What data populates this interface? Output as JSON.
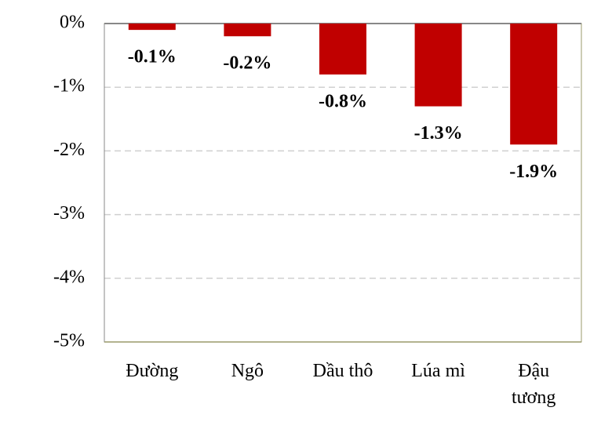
{
  "chart_data": {
    "type": "bar",
    "categories": [
      "Đường",
      "Ngô",
      "Dầu thô",
      "Lúa mì",
      "Đậu tương"
    ],
    "values": [
      -0.1,
      -0.2,
      -0.8,
      -1.3,
      -1.9
    ],
    "value_labels": [
      "-0.1%",
      "-0.2%",
      "-0.8%",
      "-1.3%",
      "-1.9%"
    ],
    "color": "#c00000",
    "ylim": [
      -5,
      0
    ],
    "yticks": [
      {
        "value": 0,
        "label": "0%"
      },
      {
        "value": -1,
        "label": "-1%"
      },
      {
        "value": -2,
        "label": "-2%"
      },
      {
        "value": -3,
        "label": "-3%"
      },
      {
        "value": -4,
        "label": "-4%"
      },
      {
        "value": -5,
        "label": "-5%"
      }
    ],
    "grid": true
  }
}
